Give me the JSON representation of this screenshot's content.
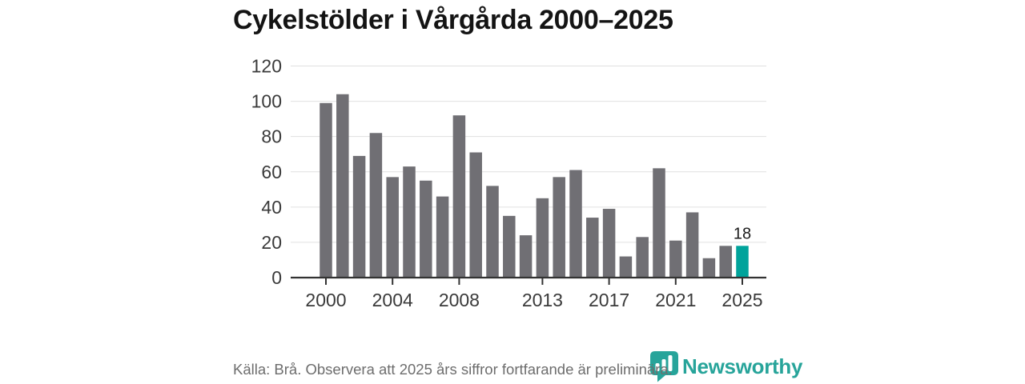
{
  "title": "Cykelstölder i Vårgårda 2000–2025",
  "chart_data": {
    "type": "bar",
    "title": "Cykelstölder i Vårgårda 2000–2025",
    "x": [
      2000,
      2001,
      2002,
      2003,
      2004,
      2005,
      2006,
      2007,
      2008,
      2009,
      2010,
      2011,
      2012,
      2013,
      2014,
      2015,
      2016,
      2017,
      2018,
      2019,
      2020,
      2021,
      2022,
      2023,
      2024,
      2025
    ],
    "values": [
      99,
      104,
      69,
      82,
      57,
      63,
      55,
      46,
      92,
      71,
      52,
      35,
      24,
      45,
      57,
      61,
      34,
      39,
      12,
      23,
      62,
      21,
      37,
      11,
      18,
      18
    ],
    "highlight_index": 25,
    "highlight_label": "18",
    "ylim": [
      0,
      120
    ],
    "yticks": [
      0,
      20,
      40,
      60,
      80,
      100,
      120
    ],
    "xticks": [
      2000,
      2004,
      2008,
      2013,
      2017,
      2021,
      2025
    ],
    "grid": true,
    "legend": "none",
    "bar_color": "#706f74",
    "highlight_color": "#00a39b",
    "grid_color": "#e0e0e0",
    "axis_color": "#333333"
  },
  "footer": {
    "source_note": "Källa: Brå. Observera att 2025 års siffror fortfarande är preliminära."
  },
  "branding": {
    "logo_text": "Newsworthy",
    "logo_color": "#27a49a",
    "logo_icon": "newsworthy-bubble-chart-icon"
  }
}
